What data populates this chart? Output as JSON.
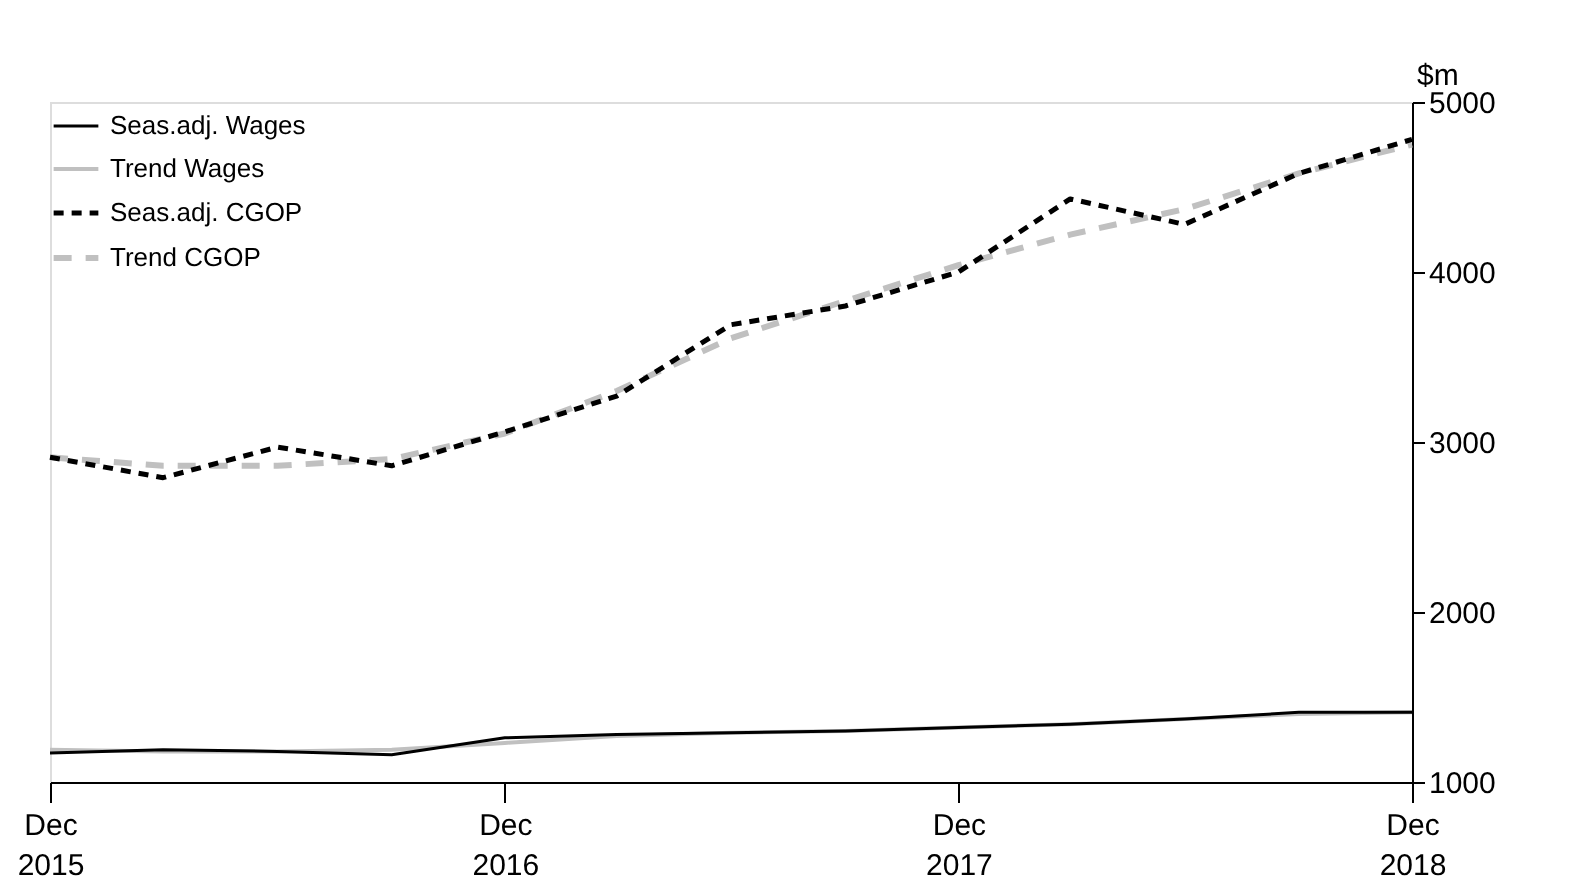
{
  "chart_data": {
    "type": "line",
    "ylabel": "$m",
    "x": [
      "2015-12",
      "2016-03",
      "2016-06",
      "2016-09",
      "2016-12",
      "2017-03",
      "2017-06",
      "2017-09",
      "2017-12",
      "2018-03",
      "2018-06",
      "2018-09",
      "2018-12"
    ],
    "series": [
      {
        "name": "Seas.adj. Wages",
        "color": "#000000",
        "line_style": "solid",
        "values": [
          1170,
          1190,
          1180,
          1160,
          1260,
          1280,
          1290,
          1300,
          1320,
          1340,
          1370,
          1410,
          1410
        ]
      },
      {
        "name": "Trend Wages",
        "color": "#c0c0c0",
        "line_style": "solid",
        "values": [
          1190,
          1180,
          1180,
          1190,
          1230,
          1270,
          1290,
          1300,
          1320,
          1340,
          1370,
          1400,
          1410
        ]
      },
      {
        "name": "Seas.adj. CGOP",
        "color": "#000000",
        "line_style": "dashed",
        "values": [
          2910,
          2790,
          2970,
          2860,
          3060,
          3270,
          3690,
          3800,
          4000,
          4430,
          4280,
          4580,
          4780
        ]
      },
      {
        "name": "Trend CGOP",
        "color": "#c0c0c0",
        "line_style": "dashed",
        "values": [
          2910,
          2860,
          2860,
          2900,
          3050,
          3300,
          3610,
          3830,
          4040,
          4220,
          4370,
          4580,
          4750
        ]
      }
    ],
    "xlim": [
      "2015-12",
      "2018-12"
    ],
    "xticks": [
      {
        "value": "2015-12",
        "label": "Dec 2015"
      },
      {
        "value": "2016-12",
        "label": "Dec 2016"
      },
      {
        "value": "2017-12",
        "label": "Dec 2017"
      },
      {
        "value": "2018-12",
        "label": "Dec 2018"
      }
    ],
    "ylim": [
      1000,
      5000
    ],
    "yticks": [
      1000,
      2000,
      3000,
      4000,
      5000
    ],
    "grid": false,
    "legend": "top left",
    "marker": "none"
  }
}
